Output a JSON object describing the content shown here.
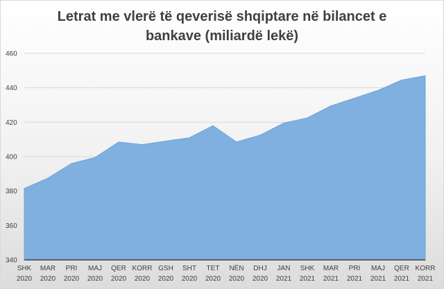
{
  "chart_data": {
    "type": "area",
    "title_line1": "Letrat me vlerë të qeverisë shqiptare në bilancet e",
    "title_line2": "bankave (miliardë lekë)",
    "xlabel": "",
    "ylabel": "",
    "ylim": [
      340,
      460
    ],
    "yticks": [
      340,
      360,
      380,
      400,
      420,
      440,
      460
    ],
    "grid": true,
    "legend": "none",
    "categories": [
      {
        "month": "SHK",
        "year": "2020"
      },
      {
        "month": "MAR",
        "year": "2020"
      },
      {
        "month": "PRI",
        "year": "2020"
      },
      {
        "month": "MAJ",
        "year": "2020"
      },
      {
        "month": "QER",
        "year": "2020"
      },
      {
        "month": "KORR",
        "year": "2020"
      },
      {
        "month": "GSH",
        "year": "2020"
      },
      {
        "month": "SHT",
        "year": "2020"
      },
      {
        "month": "TET",
        "year": "2020"
      },
      {
        "month": "NËN",
        "year": "2020"
      },
      {
        "month": "DHJ",
        "year": "2020"
      },
      {
        "month": "JAN",
        "year": "2021"
      },
      {
        "month": "SHK",
        "year": "2021"
      },
      {
        "month": "MAR",
        "year": "2021"
      },
      {
        "month": "PRI",
        "year": "2021"
      },
      {
        "month": "MAJ",
        "year": "2021"
      },
      {
        "month": "QER",
        "year": "2021"
      },
      {
        "month": "KORR",
        "year": "2021"
      }
    ],
    "values": [
      381.5,
      387.5,
      396,
      399.5,
      408.5,
      407,
      409,
      411,
      418,
      408.5,
      412.5,
      419.5,
      422.5,
      429.5,
      434,
      438.5,
      444.5,
      447
    ],
    "colors": {
      "area_fill": "#7fb0e0",
      "area_stroke": "#6fa3d6",
      "grid": "#d9d9d9",
      "axis": "#404040"
    }
  }
}
